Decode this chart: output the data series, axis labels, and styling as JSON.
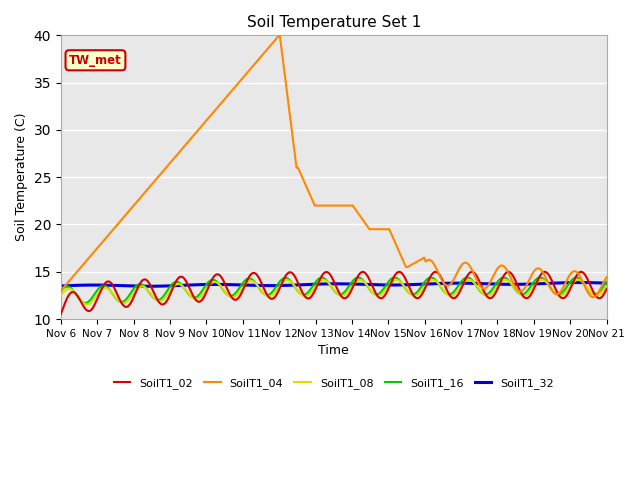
{
  "title": "Soil Temperature Set 1",
  "xlabel": "Time",
  "ylabel": "Soil Temperature (C)",
  "ylim": [
    10,
    40
  ],
  "yticks": [
    10,
    15,
    20,
    25,
    30,
    35,
    40
  ],
  "background_color": "#e8e8e8",
  "plot_bg_color": "#e8e8e8",
  "legend_label": "TW_met",
  "legend_label_color": "#cc0000",
  "legend_label_bg": "#ffffcc",
  "legend_label_border": "#cc0000",
  "series_colors": {
    "SoilT1_02": "#dd0000",
    "SoilT1_04": "#ff8800",
    "SoilT1_08": "#dddd00",
    "SoilT1_16": "#00cc00",
    "SoilT1_32": "#0000dd"
  },
  "n_days": 15,
  "pts_per_day": 24
}
